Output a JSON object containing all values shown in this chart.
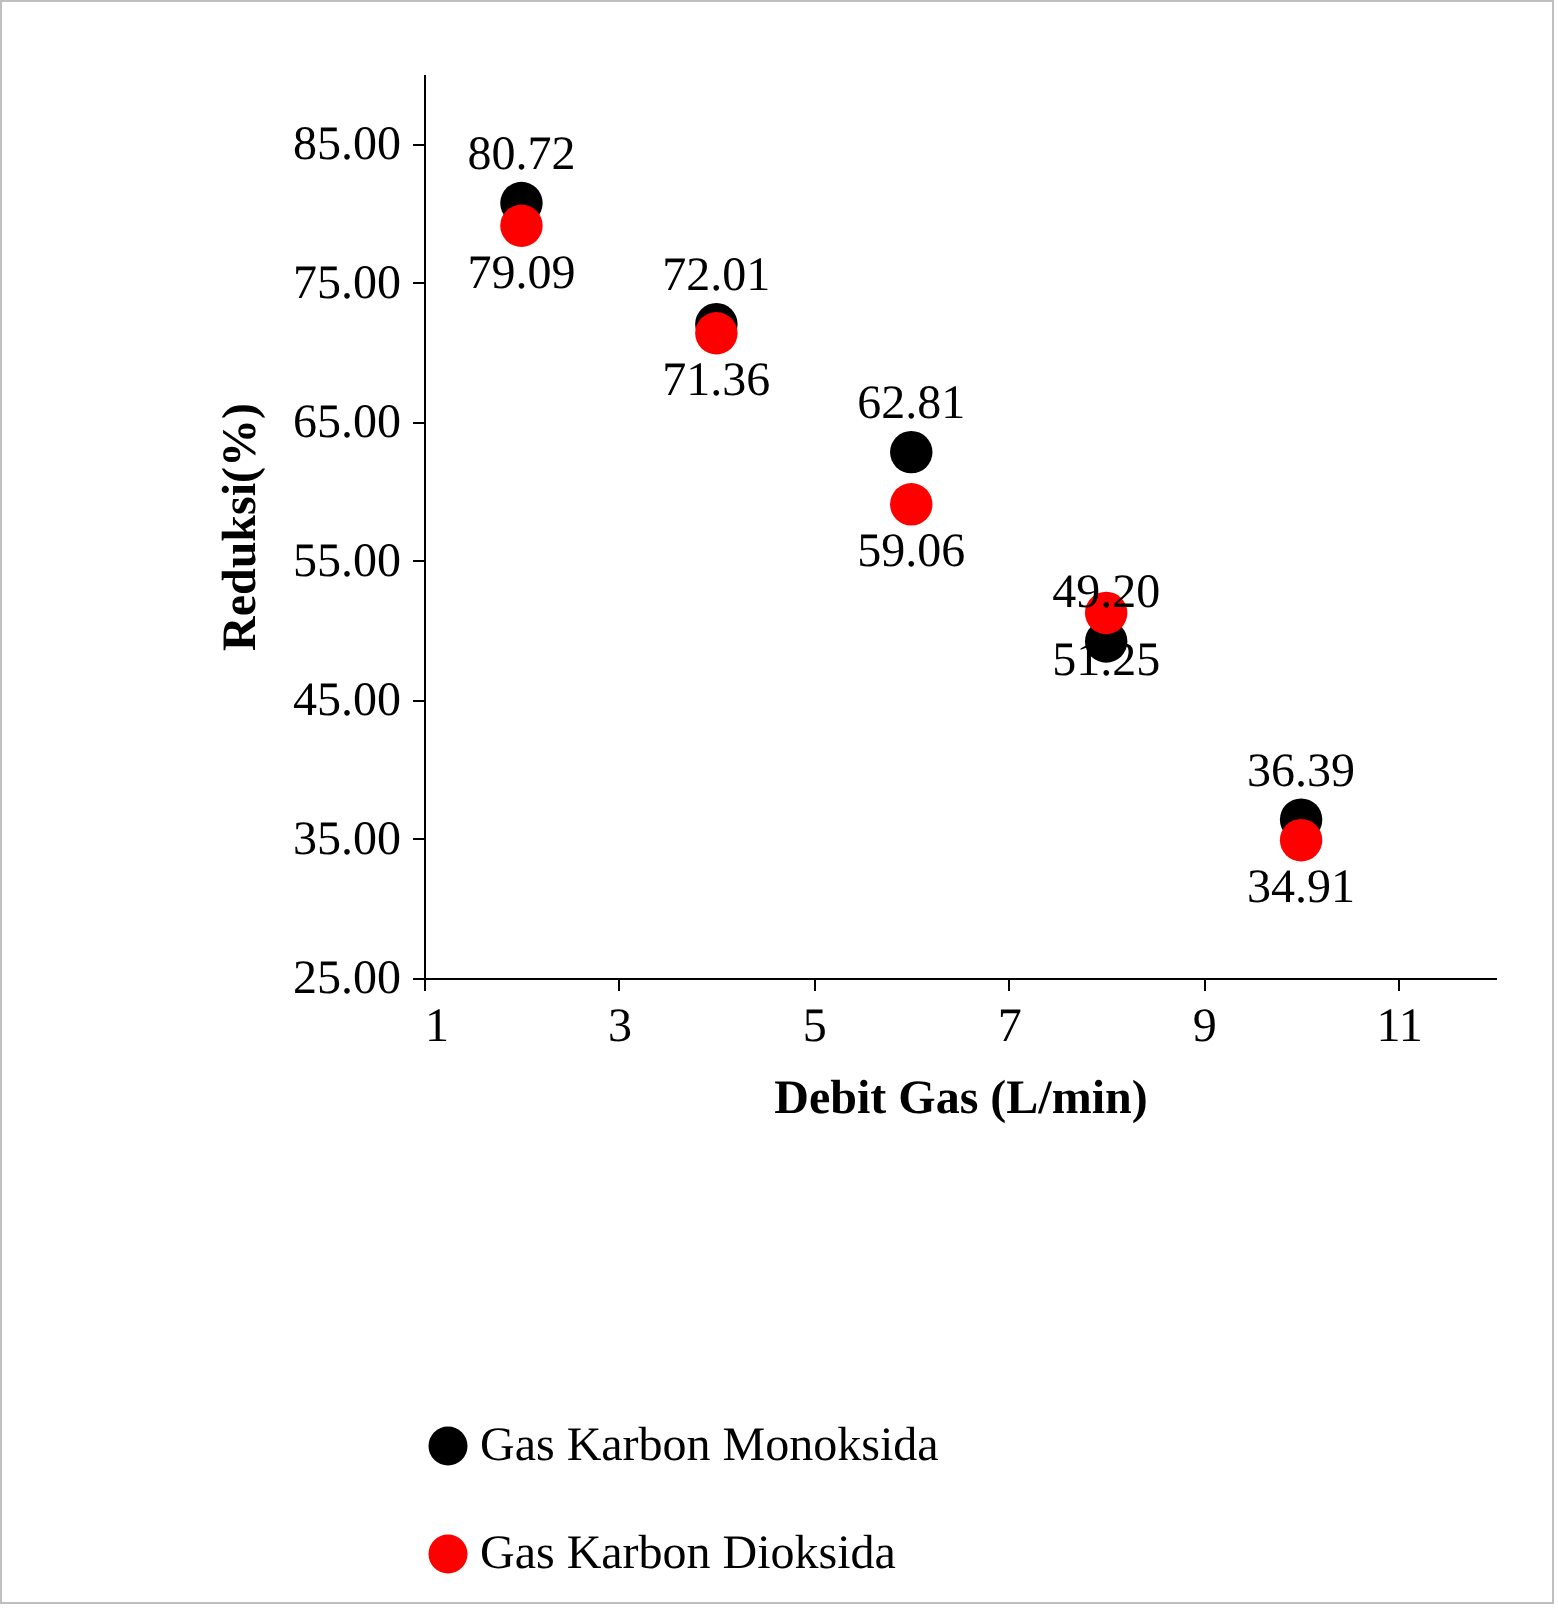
{
  "chart_data": {
    "type": "scatter",
    "xlabel": "Debit Gas (L/min)",
    "ylabel": "Reduksi(%)",
    "x": [
      2,
      4,
      6,
      8,
      10
    ],
    "series": [
      {
        "name": "Gas Karbon Monoksida",
        "color": "#000000",
        "values": [
          80.72,
          72.01,
          62.81,
          49.2,
          36.39
        ],
        "value_labels": [
          "80.72",
          "72.01",
          "62.81",
          "49.20",
          "36.39"
        ]
      },
      {
        "name": "Gas Karbon Dioksida",
        "color": "#ff0000",
        "values": [
          79.09,
          71.36,
          59.06,
          51.25,
          34.91
        ],
        "value_labels": [
          "79.09",
          "71.36",
          "59.06",
          "51.25",
          "34.91"
        ]
      }
    ],
    "xlim": [
      1,
      12
    ],
    "xticks": [
      1,
      3,
      5,
      7,
      9,
      11
    ],
    "ylim": [
      25,
      90
    ],
    "yticks": [
      {
        "value": 25,
        "label": "25.00"
      },
      {
        "value": 35,
        "label": "35.00"
      },
      {
        "value": 45,
        "label": "45.00"
      },
      {
        "value": 55,
        "label": "55.00"
      },
      {
        "value": 65,
        "label": "65.00"
      },
      {
        "value": 75,
        "label": "75.00"
      },
      {
        "value": 85,
        "label": "85.00"
      }
    ],
    "marker": "circle",
    "legend": "bottom",
    "grid": false
  }
}
